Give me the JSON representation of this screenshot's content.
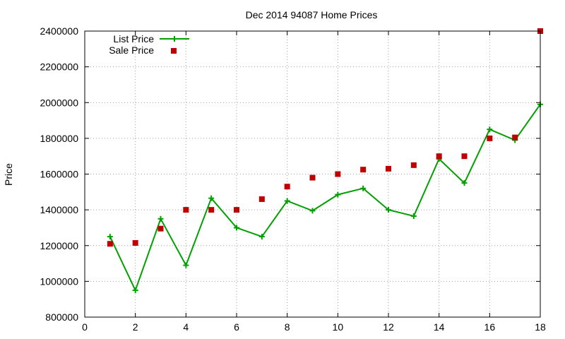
{
  "chart_data": {
    "type": "line",
    "title": "Dec 2014 94087 Home Prices",
    "xlabel": "",
    "ylabel": "Price",
    "xlim": [
      0,
      18
    ],
    "ylim": [
      800000,
      2400000
    ],
    "xticks": [
      0,
      2,
      4,
      6,
      8,
      10,
      12,
      14,
      16,
      18
    ],
    "yticks": [
      800000,
      1000000,
      1200000,
      1400000,
      1600000,
      1800000,
      2000000,
      2200000,
      2400000
    ],
    "grid": true,
    "legend_position": "top-left",
    "series": [
      {
        "name": "List Price",
        "style": "line-plus",
        "color": "#00a000",
        "x": [
          1,
          2,
          3,
          4,
          5,
          6,
          7,
          8,
          9,
          10,
          11,
          12,
          13,
          14,
          15,
          16,
          17,
          18
        ],
        "y": [
          1250000,
          950000,
          1350000,
          1090000,
          1465000,
          1300000,
          1250000,
          1450000,
          1395000,
          1485000,
          1520000,
          1400000,
          1365000,
          1685000,
          1550000,
          1850000,
          1790000,
          1990000
        ]
      },
      {
        "name": "Sale Price",
        "style": "square-points",
        "color": "#c00000",
        "x": [
          1,
          2,
          3,
          4,
          5,
          6,
          7,
          8,
          9,
          10,
          11,
          12,
          13,
          14,
          15,
          16,
          17,
          18
        ],
        "y": [
          1210000,
          1215000,
          1295000,
          1400000,
          1400000,
          1400000,
          1460000,
          1530000,
          1580000,
          1600000,
          1625000,
          1630000,
          1650000,
          1700000,
          1700000,
          1800000,
          1805000,
          2400000
        ]
      }
    ]
  }
}
